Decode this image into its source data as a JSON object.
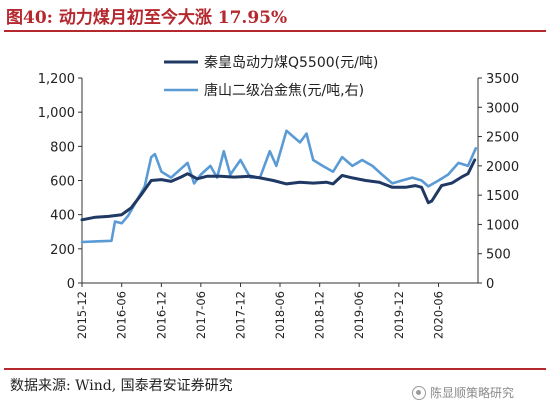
{
  "title": "图40: 动力煤月初至今大涨 17.95%",
  "source": "数据来源: Wind, 国泰君安证券研究",
  "watermark": "陈显顺策略研究",
  "watermark_icon": "wechat-icon",
  "colors": {
    "title": "#b4282e",
    "series1": "#1f3864",
    "series2": "#5b9bd5",
    "axis": "#333333"
  },
  "chart_data": {
    "type": "line",
    "legend_position": "top-right",
    "grid": false,
    "x_tick_labels": [
      "2015-12",
      "2016-06",
      "2016-12",
      "2017-06",
      "2017-12",
      "2018-06",
      "2018-12",
      "2019-06",
      "2019-12",
      "2020-06"
    ],
    "x_range": [
      "2015-12-01",
      "2020-11-30"
    ],
    "y_left": {
      "ticks": [
        0,
        200,
        400,
        600,
        800,
        1000,
        1200
      ],
      "tick_labels": [
        "0",
        "200",
        "400",
        "600",
        "800",
        "1,000",
        "1,200"
      ],
      "range": [
        0,
        1200
      ]
    },
    "y_right": {
      "ticks": [
        0,
        500,
        1000,
        1500,
        2000,
        2500,
        3000,
        3500
      ],
      "tick_labels": [
        "0",
        "500",
        "1000",
        "1500",
        "2000",
        "2500",
        "3000",
        "3500"
      ],
      "range": [
        0,
        3500
      ]
    },
    "series": [
      {
        "name": "秦皇岛动力煤Q5500(元/吨)",
        "axis": "left",
        "points": [
          [
            "2015-12-01",
            370
          ],
          [
            "2016-02-01",
            385
          ],
          [
            "2016-04-01",
            390
          ],
          [
            "2016-06-01",
            400
          ],
          [
            "2016-07-15",
            440
          ],
          [
            "2016-09-01",
            520
          ],
          [
            "2016-10-15",
            600
          ],
          [
            "2016-12-01",
            605
          ],
          [
            "2017-01-15",
            595
          ],
          [
            "2017-03-01",
            620
          ],
          [
            "2017-04-01",
            640
          ],
          [
            "2017-05-15",
            610
          ],
          [
            "2017-07-01",
            625
          ],
          [
            "2017-09-01",
            625
          ],
          [
            "2017-11-01",
            620
          ],
          [
            "2018-01-15",
            625
          ],
          [
            "2018-03-01",
            615
          ],
          [
            "2018-05-01",
            600
          ],
          [
            "2018-07-01",
            580
          ],
          [
            "2018-09-01",
            590
          ],
          [
            "2018-11-01",
            585
          ],
          [
            "2019-01-01",
            590
          ],
          [
            "2019-02-01",
            580
          ],
          [
            "2019-03-15",
            630
          ],
          [
            "2019-05-01",
            615
          ],
          [
            "2019-07-01",
            600
          ],
          [
            "2019-09-01",
            590
          ],
          [
            "2019-11-01",
            560
          ],
          [
            "2020-01-01",
            560
          ],
          [
            "2020-02-15",
            570
          ],
          [
            "2020-03-15",
            560
          ],
          [
            "2020-04-15",
            470
          ],
          [
            "2020-05-01",
            480
          ],
          [
            "2020-06-15",
            570
          ],
          [
            "2020-08-01",
            585
          ],
          [
            "2020-09-15",
            620
          ],
          [
            "2020-10-15",
            640
          ],
          [
            "2020-11-15",
            720
          ]
        ]
      },
      {
        "name": "唐山二级冶金焦(元/吨,右)",
        "axis": "right",
        "points": [
          [
            "2015-12-01",
            700
          ],
          [
            "2016-02-01",
            710
          ],
          [
            "2016-04-15",
            720
          ],
          [
            "2016-05-01",
            1050
          ],
          [
            "2016-06-01",
            1020
          ],
          [
            "2016-07-01",
            1150
          ],
          [
            "2016-08-01",
            1350
          ],
          [
            "2016-09-15",
            1650
          ],
          [
            "2016-10-15",
            2150
          ],
          [
            "2016-11-01",
            2200
          ],
          [
            "2016-12-01",
            1900
          ],
          [
            "2017-01-15",
            1800
          ],
          [
            "2017-03-01",
            1950
          ],
          [
            "2017-04-01",
            2050
          ],
          [
            "2017-05-01",
            1700
          ],
          [
            "2017-06-01",
            1850
          ],
          [
            "2017-07-15",
            2000
          ],
          [
            "2017-08-15",
            1800
          ],
          [
            "2017-09-15",
            2250
          ],
          [
            "2017-10-15",
            1850
          ],
          [
            "2017-12-01",
            2100
          ],
          [
            "2018-01-15",
            1800
          ],
          [
            "2018-03-01",
            1800
          ],
          [
            "2018-04-15",
            2250
          ],
          [
            "2018-05-15",
            2000
          ],
          [
            "2018-07-01",
            2600
          ],
          [
            "2018-08-01",
            2500
          ],
          [
            "2018-09-01",
            2400
          ],
          [
            "2018-10-01",
            2550
          ],
          [
            "2018-11-01",
            2100
          ],
          [
            "2018-12-15",
            2000
          ],
          [
            "2019-02-01",
            1900
          ],
          [
            "2019-03-15",
            2150
          ],
          [
            "2019-05-01",
            2000
          ],
          [
            "2019-06-15",
            2100
          ],
          [
            "2019-08-01",
            2000
          ],
          [
            "2019-09-15",
            1850
          ],
          [
            "2019-11-01",
            1700
          ],
          [
            "2019-12-15",
            1750
          ],
          [
            "2020-02-01",
            1800
          ],
          [
            "2020-03-15",
            1750
          ],
          [
            "2020-04-15",
            1650
          ],
          [
            "2020-06-01",
            1750
          ],
          [
            "2020-07-15",
            1850
          ],
          [
            "2020-09-01",
            2050
          ],
          [
            "2020-10-15",
            2000
          ],
          [
            "2020-11-20",
            2300
          ]
        ]
      }
    ]
  }
}
